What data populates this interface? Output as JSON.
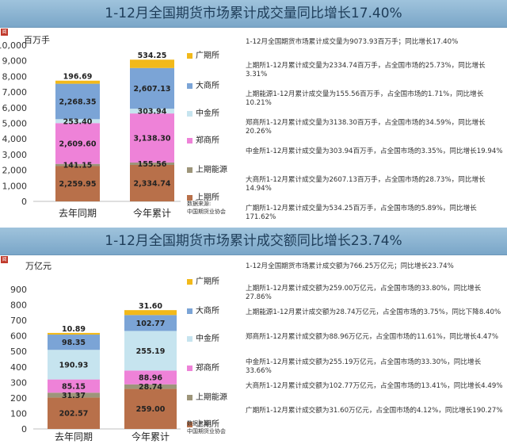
{
  "panels": [
    {
      "title": "1-12月全国期货市场累计成交量同比增长17.40%",
      "unit": "百万手",
      "source_lines": [
        "数据来源:",
        "中国期货业协会"
      ],
      "notes": [
        "1-12月全国期货市场累计成交量为9073.93百万手；同比增长17.40%",
        "上期所1-12月累计成交量为2334.74百万手，占全国市场的25.73%，同比增长3.31%",
        "上期能源1-12月累计成交量为155.56百万手，占全国市场的1.71%，同比增长10.21%",
        "郑商所1-12月累计成交量为3138.30百万手，占全国市场的34.59%，同比增长20.26%",
        "中金所1-12月累计成交量为303.94百万手，占全国市场的3.35%，同比增长19.94%",
        "大商所1-12月累计成交量为2607.13百万手，占全国市场的28.73%，同比增长14.94%",
        "广期所1-12月累计成交量为534.25百万手，占全国市场的5.89%，同比增长171.62%"
      ]
    },
    {
      "title": "1-12月全国期货市场累计成交额同比增长23.74%",
      "unit": "万亿元",
      "source_lines": [
        "数据来源:",
        "中国期货业协会"
      ],
      "notes": [
        "1-12月全国期货市场累计成交额为766.25万亿元；同比增长23.74%",
        "上期所1-12月累计成交额为259.00万亿元，占全国市场的33.80%，同比增长27.86%",
        "上期能源1-12月累计成交额为28.74万亿元，占全国市场的3.75%，同比下降8.40%",
        "郑商所1-12月累计成交额为88.96万亿元，占全国市场的11.61%，同比增长4.47%",
        "中金所1-12月累计成交额为255.19万亿元，占全国市场的33.30%，同比增长33.66%",
        "大商所1-12月累计成交额为102.77万亿元，占全国市场的13.41%，同比增长4.49%",
        "广期所1-12月累计成交额为31.60万亿元，占全国市场的4.12%，同比增长190.27%"
      ]
    }
  ],
  "chart_data": [
    {
      "type": "bar",
      "stacked": true,
      "categories": [
        "去年同期",
        "今年累计"
      ],
      "ylim": [
        0,
        10000
      ],
      "yticks": [
        0,
        1000,
        2000,
        3000,
        4000,
        5000,
        6000,
        7000,
        8000,
        9000,
        10000
      ],
      "grid": false,
      "legend_position": "right",
      "series": [
        {
          "name": "上期所",
          "color": "#b8704a",
          "values": [
            2259.95,
            2334.74
          ],
          "labels": [
            "2,259.95",
            "2,334.74"
          ]
        },
        {
          "name": "上期能源",
          "color": "#9d957a",
          "values": [
            141.15,
            155.56
          ],
          "labels": [
            "141.15",
            "155.56"
          ]
        },
        {
          "name": "郑商所",
          "color": "#ee82d8",
          "values": [
            2609.6,
            3138.3
          ],
          "labels": [
            "2,609.60",
            "3,138.30"
          ]
        },
        {
          "name": "中金所",
          "color": "#c6e4ef",
          "values": [
            253.4,
            303.94
          ],
          "labels": [
            "253.40",
            "303.94"
          ]
        },
        {
          "name": "大商所",
          "color": "#7ba4d6",
          "values": [
            2268.35,
            2607.13
          ],
          "labels": [
            "2,268.35",
            "2,607.13"
          ]
        },
        {
          "name": "广期所",
          "color": "#f2b91a",
          "values": [
            196.69,
            534.25
          ],
          "labels": [
            "196.69",
            "534.25"
          ]
        }
      ]
    },
    {
      "type": "bar",
      "stacked": true,
      "categories": [
        "去年同期",
        "今年累计"
      ],
      "ylim": [
        0,
        900
      ],
      "yticks": [
        0,
        100,
        200,
        300,
        400,
        500,
        600,
        700,
        800,
        900
      ],
      "grid": false,
      "legend_position": "right",
      "series": [
        {
          "name": "上期所",
          "color": "#b8704a",
          "values": [
            202.57,
            259.0
          ],
          "labels": [
            "202.57",
            "259.00"
          ]
        },
        {
          "name": "上期能源",
          "color": "#9d957a",
          "values": [
            31.37,
            28.74
          ],
          "labels": [
            "31.37",
            "28.74"
          ]
        },
        {
          "name": "郑商所",
          "color": "#ee82d8",
          "values": [
            85.15,
            88.96
          ],
          "labels": [
            "85.15",
            "88.96"
          ]
        },
        {
          "name": "中金所",
          "color": "#c6e4ef",
          "values": [
            190.93,
            255.19
          ],
          "labels": [
            "190.93",
            "255.19"
          ]
        },
        {
          "name": "大商所",
          "color": "#7ba4d6",
          "values": [
            98.35,
            102.77
          ],
          "labels": [
            "98.35",
            "102.77"
          ]
        },
        {
          "name": "广期所",
          "color": "#f2b91a",
          "values": [
            10.89,
            31.6
          ],
          "labels": [
            "10.89",
            "31.60"
          ]
        }
      ]
    }
  ]
}
